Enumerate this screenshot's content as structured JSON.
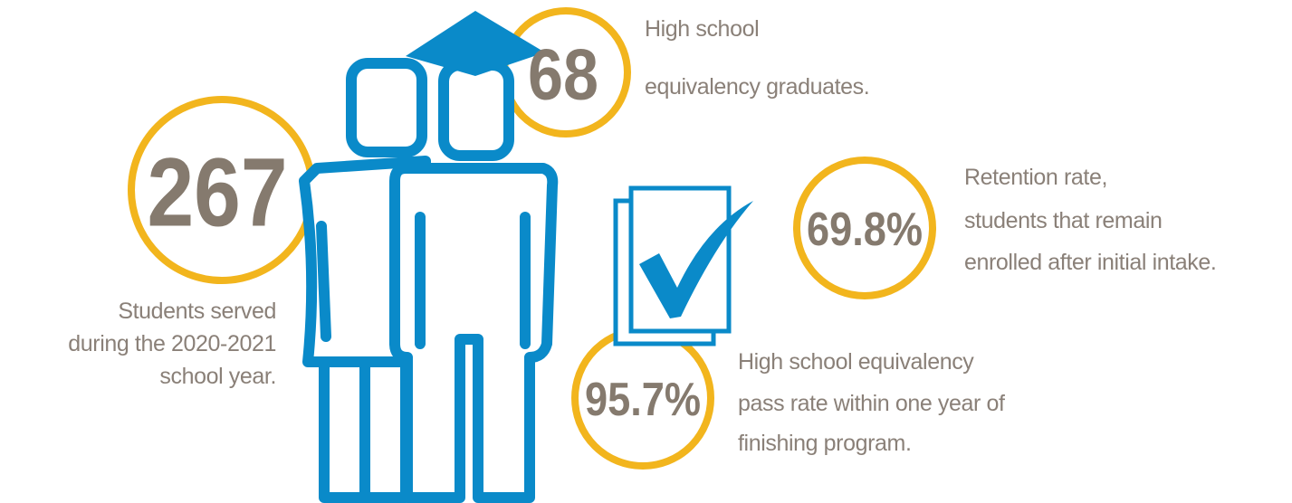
{
  "stats": [
    {
      "value": "267",
      "lines": [
        "Students served",
        "during the 2020-2021",
        "school year."
      ]
    },
    {
      "value": "68",
      "lines": [
        "High school",
        "equivalency graduates."
      ]
    },
    {
      "value": "69.8%",
      "lines": [
        "Retention rate,",
        "students that remain",
        "enrolled after initial intake."
      ]
    },
    {
      "value": "95.7%",
      "lines": [
        "High school equivalency",
        "pass rate within one year of",
        "finishing program."
      ]
    }
  ]
}
